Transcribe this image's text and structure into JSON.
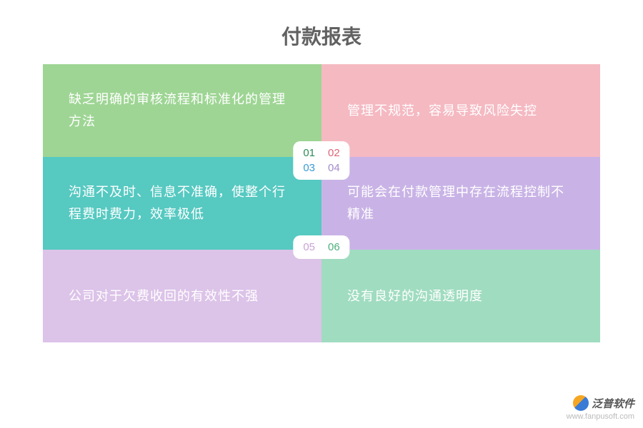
{
  "title": "付款报表",
  "cards": [
    {
      "text": "缺乏明确的审核流程和标准化的管理方法",
      "bg": "#9ed594"
    },
    {
      "text": "管理不规范，容易导致风险失控",
      "bg": "#f5b9c2"
    },
    {
      "text": "沟通不及时、信息不准确，使整个行程费时费力，效率极低",
      "bg": "#56c9c1"
    },
    {
      "text": "可能会在付款管理中存在流程控制不精准",
      "bg": "#c9b3e6"
    },
    {
      "text": "公司对于欠费收回的有效性不强",
      "bg": "#dcc3e8"
    },
    {
      "text": "没有良好的沟通透明度",
      "bg": "#a0dcc0"
    }
  ],
  "badges": [
    {
      "items": [
        {
          "n": "01",
          "c": "#2e8b57"
        },
        {
          "n": "02",
          "c": "#e06377"
        },
        {
          "n": "03",
          "c": "#3a9bd5"
        },
        {
          "n": "04",
          "c": "#a58cc9"
        }
      ]
    },
    {
      "items": [
        {
          "n": "05",
          "c": "#c9a3d6"
        },
        {
          "n": "06",
          "c": "#4caf7d"
        }
      ]
    }
  ],
  "watermark": {
    "brand": "泛普软件",
    "url": "www.fanpusoft.com"
  }
}
